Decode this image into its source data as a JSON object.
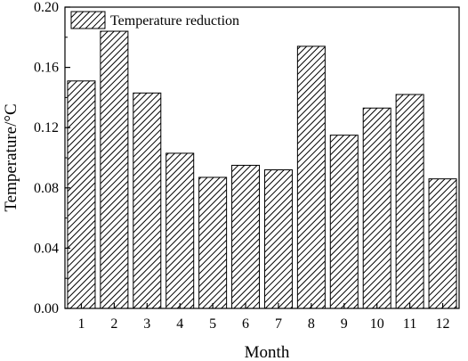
{
  "chart_data": {
    "type": "bar",
    "title": "",
    "xlabel": "Month",
    "ylabel": "Temperature/°C",
    "categories": [
      "1",
      "2",
      "3",
      "4",
      "5",
      "6",
      "7",
      "8",
      "9",
      "10",
      "11",
      "12"
    ],
    "series": [
      {
        "name": "Temperature reduction",
        "values": [
          0.151,
          0.184,
          0.143,
          0.103,
          0.087,
          0.095,
          0.092,
          0.174,
          0.115,
          0.133,
          0.142,
          0.086
        ],
        "fill_pattern": "diagonal-hatch",
        "color": "#000000"
      }
    ],
    "ylim": [
      0,
      0.2
    ],
    "yticks": [
      "0.00",
      "0.04",
      "0.08",
      "0.12",
      "0.16",
      "0.20"
    ],
    "grid": false,
    "legend": "top-left"
  }
}
